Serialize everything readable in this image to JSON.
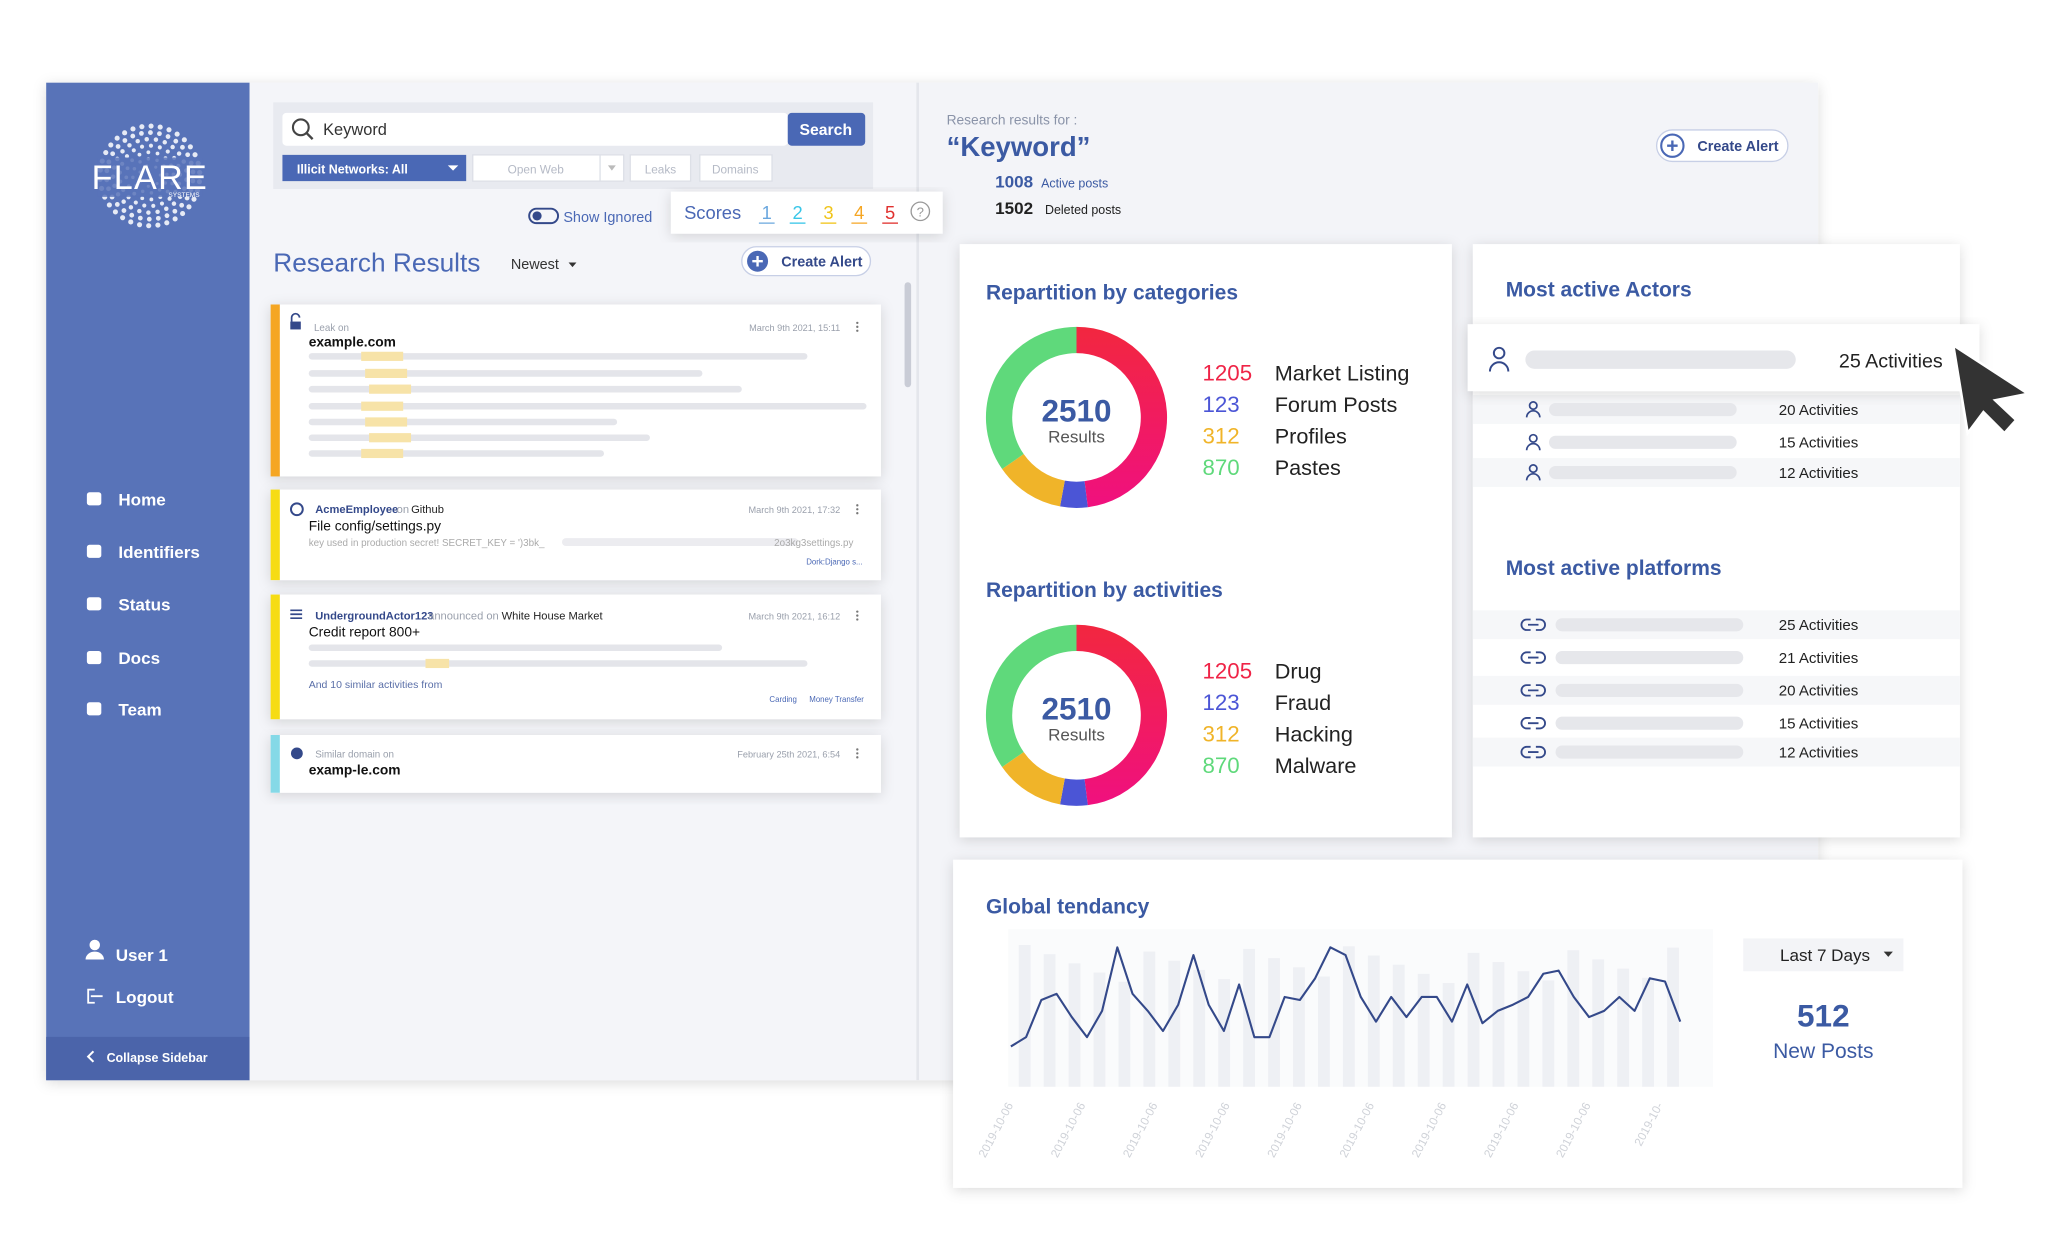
{
  "sidebar": {
    "logo": "FLARE",
    "logo_sub": "SYSTEMS",
    "nav": [
      "Home",
      "Identifiers",
      "Status",
      "Docs",
      "Team"
    ],
    "user": "User 1",
    "logout": "Logout",
    "collapse": "Collapse Sidebar"
  },
  "search": {
    "placeholder": "Keyword",
    "button": "Search",
    "filters": [
      "Illicit Networks: All",
      "Open Web",
      "Leaks",
      "Domains"
    ],
    "show_ignored": "Show Ignored",
    "scores_label": "Scores",
    "scores": [
      "1",
      "2",
      "3",
      "4",
      "5"
    ]
  },
  "results": {
    "title": "Research Results",
    "sort": "Newest",
    "create_alert": "Create Alert",
    "items": [
      {
        "kind": "Leak on",
        "site": "example.com",
        "date": "March 9th 2021, 15:11"
      },
      {
        "author": "AcmeEmployee",
        "on": "on",
        "platform": "Github",
        "title": "File config/settings.py",
        "date": "March 9th 2021, 17:32",
        "snippet": "key used in production secret! SECRET_KEY = ')3bk_",
        "snippet_end": "2o3kg3settings.py",
        "tag": "Dork:Django s..."
      },
      {
        "author": "UndergroundActor123",
        "on": "announced on",
        "platform": "White House Market",
        "title": "Credit report 800+",
        "date": "March 9th 2021, 16:12",
        "similar": "And 10 similar activities from",
        "tags": [
          "Carding",
          "Money Transfer"
        ]
      },
      {
        "kind": "Similar domain on",
        "site": "examp-le.com",
        "date": "February 25th 2021, 6:54"
      }
    ]
  },
  "summary": {
    "label": "Research results for :",
    "keyword": "“Keyword”",
    "active_count": "1008",
    "active_label": "Active posts",
    "deleted_count": "1502",
    "deleted_label": "Deleted posts",
    "create_alert": "Create Alert"
  },
  "chart_data": [
    {
      "type": "donut",
      "title": "Repartition by categories",
      "center_value": "2510",
      "center_label": "Results",
      "categories": [
        "Market Listing",
        "Forum Posts",
        "Profiles",
        "Pastes"
      ],
      "values": [
        1205,
        123,
        312,
        870
      ],
      "colors": [
        "#ef2447",
        "#4b55d6",
        "#f0b429",
        "#5fd97b"
      ]
    },
    {
      "type": "donut",
      "title": "Repartition by activities",
      "center_value": "2510",
      "center_label": "Results",
      "categories": [
        "Drug",
        "Fraud",
        "Hacking",
        "Malware"
      ],
      "values": [
        1205,
        123,
        312,
        870
      ],
      "colors": [
        "#ef2447",
        "#4b55d6",
        "#f0b429",
        "#5fd97b"
      ]
    },
    {
      "type": "line",
      "title": "Global tendancy",
      "color": "#34498a",
      "ylim": [
        0,
        100
      ],
      "x_labels": [
        "2019-10-06",
        "2019-10-06",
        "2019-10-06",
        "2019-10-06",
        "2019-10-06",
        "2019-10-06",
        "2019-10-06",
        "2019-10-06",
        "2019-10-06",
        "2019-10-"
      ],
      "values": [
        26,
        32,
        56,
        60,
        45,
        32,
        49,
        90,
        60,
        49,
        36,
        53,
        85,
        53,
        36,
        66,
        32,
        32,
        58,
        56,
        70,
        90,
        85,
        58,
        42,
        58,
        45,
        58,
        58,
        42,
        66,
        41,
        49,
        53,
        58,
        73,
        75,
        58,
        45,
        49,
        58,
        49,
        70,
        68,
        42
      ],
      "range_select": "Last 7 Days",
      "stat_value": "512",
      "stat_label": "New Posts"
    }
  ],
  "actors": {
    "title": "Most active Actors",
    "activities": [
      "25 Activities",
      "20 Activities",
      "15 Activities",
      "12 Activities"
    ]
  },
  "platforms": {
    "title": "Most active platforms",
    "activities": [
      "25 Activities",
      "21 Activities",
      "20 Activities",
      "15 Activities",
      "12 Activities"
    ]
  }
}
